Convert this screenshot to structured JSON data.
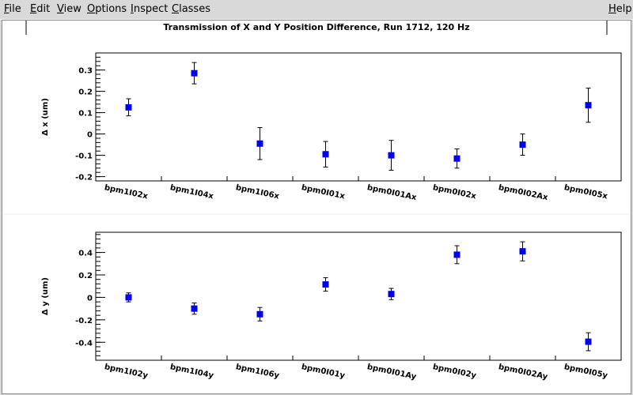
{
  "menu": {
    "file": "File",
    "edit": "Edit",
    "view": "View",
    "options": "Options",
    "inspect": "Inspect",
    "classes": "Classes",
    "help": "Help"
  },
  "chart_data": [
    {
      "type": "scatter",
      "title": "Transmission of X and Y Position Difference, Run 1712, 120 Hz",
      "ylabel": "Δ x (um)",
      "ylim": [
        -0.22,
        0.38
      ],
      "yticks": [
        -0.2,
        -0.1,
        0,
        0.1,
        0.2,
        0.3
      ],
      "ytick_labels": [
        "-0.2",
        "-0.1",
        "0",
        "0.1",
        "0.2",
        "0.3"
      ],
      "categories": [
        "bpm1I02x",
        "bpm1I04x",
        "bpm1I06x",
        "bpm0I01x",
        "bpm0I01Ax",
        "bpm0I02x",
        "bpm0I02Ax",
        "bpm0I05x"
      ],
      "series": [
        {
          "color": "#0000ee",
          "marker": "square",
          "points": [
            {
              "cat": 0.5,
              "y": 0.125,
              "err": 0.04
            },
            {
              "cat": 1.5,
              "y": 0.285,
              "err": 0.05
            },
            {
              "cat": 2.5,
              "y": -0.045,
              "err": 0.075
            },
            {
              "cat": 3.5,
              "y": -0.095,
              "err": 0.06
            },
            {
              "cat": 4.5,
              "y": -0.1,
              "err": 0.07
            },
            {
              "cat": 5.5,
              "y": -0.115,
              "err": 0.045
            },
            {
              "cat": 6.5,
              "y": -0.05,
              "err": 0.05
            },
            {
              "cat": 7.5,
              "y": 0.135,
              "err": 0.08
            }
          ]
        }
      ]
    },
    {
      "type": "scatter",
      "ylabel": "Δ y (um)",
      "ylim": [
        -0.56,
        0.58
      ],
      "yticks": [
        -0.4,
        -0.2,
        0,
        0.2,
        0.4
      ],
      "ytick_labels": [
        "-0.4",
        "-0.2",
        "0",
        "0.2",
        "0.4"
      ],
      "categories": [
        "bpm1I02y",
        "bpm1I04y",
        "bpm1I06y",
        "bpm0I01y",
        "bpm0I01Ay",
        "bpm0I02y",
        "bpm0I02Ay",
        "bpm0I05y"
      ],
      "series": [
        {
          "color": "#0000ee",
          "marker": "square",
          "points": [
            {
              "cat": 0.5,
              "y": 0.0,
              "err": 0.04
            },
            {
              "cat": 1.5,
              "y": -0.1,
              "err": 0.05
            },
            {
              "cat": 2.5,
              "y": -0.15,
              "err": 0.06
            },
            {
              "cat": 3.5,
              "y": 0.115,
              "err": 0.06
            },
            {
              "cat": 4.5,
              "y": 0.03,
              "err": 0.05
            },
            {
              "cat": 5.5,
              "y": 0.38,
              "err": 0.08
            },
            {
              "cat": 6.5,
              "y": 0.41,
              "err": 0.085
            },
            {
              "cat": 7.5,
              "y": -0.395,
              "err": 0.08
            }
          ]
        }
      ]
    }
  ]
}
